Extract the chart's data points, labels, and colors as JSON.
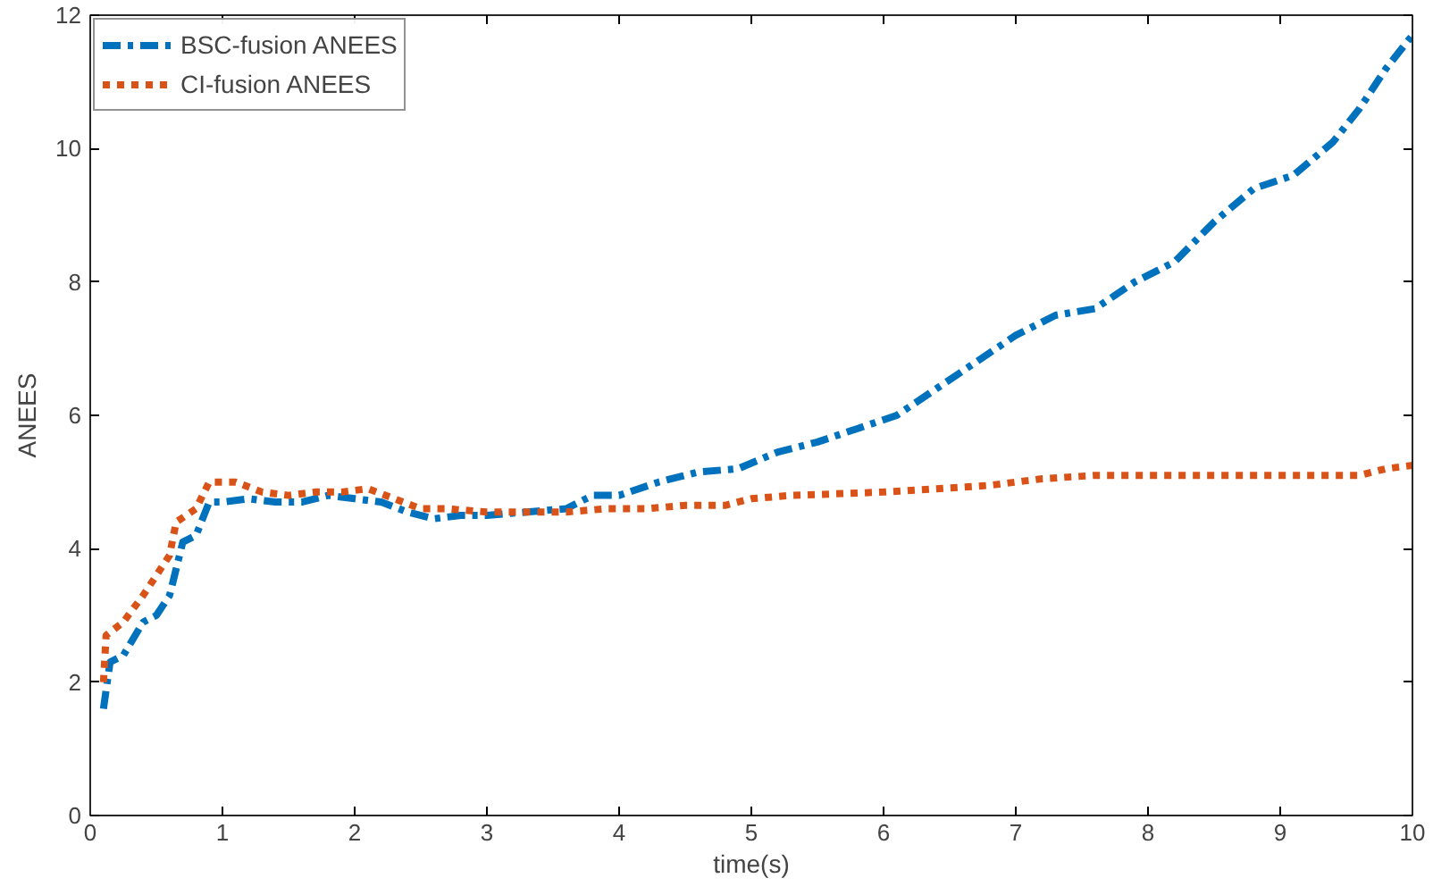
{
  "chart_data": {
    "type": "line",
    "xlabel": "time(s)",
    "ylabel": "ANEES",
    "xlim": [
      0,
      10
    ],
    "ylim": [
      0,
      12
    ],
    "xticks": [
      0,
      1,
      2,
      3,
      4,
      5,
      6,
      7,
      8,
      9,
      10
    ],
    "yticks": [
      0,
      2,
      4,
      6,
      8,
      10,
      12
    ],
    "grid": false,
    "legend": "top left",
    "x": [
      0.1,
      0.15,
      0.25,
      0.4,
      0.5,
      0.6,
      0.7,
      0.8,
      0.9,
      1.0,
      1.2,
      1.4,
      1.6,
      1.8,
      2.0,
      2.2,
      2.4,
      2.6,
      2.8,
      3.0,
      3.3,
      3.6,
      3.8,
      4.0,
      4.3,
      4.6,
      4.9,
      5.2,
      5.5,
      5.8,
      6.1,
      6.4,
      6.7,
      7.0,
      7.3,
      7.6,
      7.9,
      8.2,
      8.5,
      8.8,
      9.1,
      9.4,
      9.6,
      9.8,
      10.0
    ],
    "series": [
      {
        "name": "BSC-fusion ANEES",
        "color": "#0072bd",
        "line_style": "dashdot",
        "values": [
          1.6,
          2.3,
          2.4,
          2.9,
          3.0,
          3.3,
          4.1,
          4.2,
          4.7,
          4.7,
          4.75,
          4.7,
          4.7,
          4.8,
          4.75,
          4.7,
          4.55,
          4.45,
          4.5,
          4.5,
          4.55,
          4.6,
          4.8,
          4.8,
          5.0,
          5.15,
          5.2,
          5.45,
          5.6,
          5.8,
          6.0,
          6.4,
          6.8,
          7.2,
          7.5,
          7.6,
          8.0,
          8.3,
          8.9,
          9.4,
          9.6,
          10.1,
          10.6,
          11.2,
          11.7
        ]
      },
      {
        "name": "CI-fusion ANEES",
        "color": "#d95319",
        "line_style": "dotted",
        "x": [
          0.1,
          0.12,
          0.25,
          0.4,
          0.5,
          0.6,
          0.65,
          0.8,
          0.9,
          1.1,
          1.3,
          1.5,
          1.7,
          1.9,
          2.1,
          2.3,
          2.5,
          2.7,
          3.0,
          3.3,
          3.6,
          3.9,
          4.2,
          4.5,
          4.8,
          5.0,
          5.3,
          5.6,
          6.0,
          6.4,
          6.8,
          7.2,
          7.6,
          8.0,
          8.4,
          8.8,
          9.2,
          9.6,
          9.8,
          10.0
        ],
        "values": [
          2.0,
          2.7,
          2.9,
          3.3,
          3.6,
          3.9,
          4.4,
          4.6,
          5.0,
          5.0,
          4.85,
          4.8,
          4.85,
          4.85,
          4.9,
          4.75,
          4.6,
          4.6,
          4.55,
          4.55,
          4.55,
          4.6,
          4.6,
          4.65,
          4.65,
          4.75,
          4.8,
          4.82,
          4.85,
          4.9,
          4.95,
          5.05,
          5.1,
          5.1,
          5.1,
          5.1,
          5.1,
          5.1,
          5.2,
          5.25
        ]
      }
    ]
  }
}
